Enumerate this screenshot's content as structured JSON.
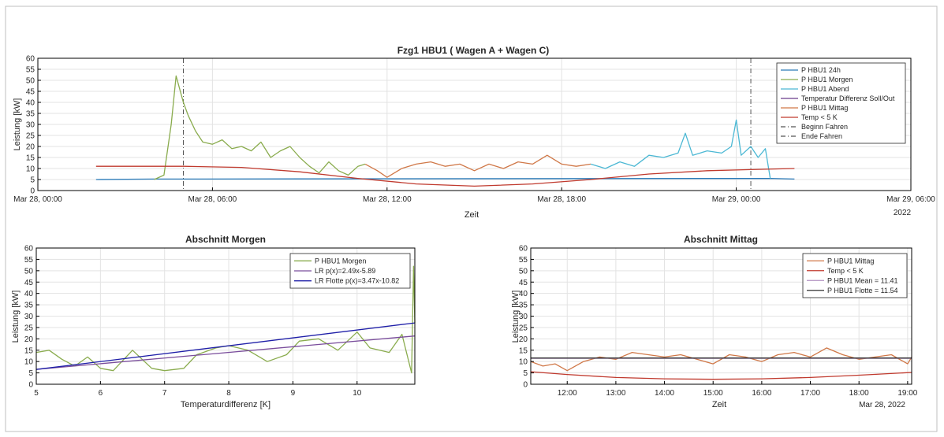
{
  "chart_data": [
    {
      "id": "top",
      "type": "line",
      "title": "Fzg1 HBU1 ( Wagen A + Wagen C)",
      "xlabel": "Zeit",
      "ylabel": "Leistung [kW]",
      "ylim": [
        0,
        60
      ],
      "xlim": [
        "Mar 28, 00:00",
        "Mar 29, 06:00"
      ],
      "grid": true,
      "legend_position": "top-right",
      "year_label": "2022",
      "x_tick_labels": [
        "Mar 28, 00:00",
        "Mar 28, 06:00",
        "Mar 28, 12:00",
        "Mar 28, 18:00",
        "Mar 29, 00:00",
        "Mar 29, 06:00"
      ],
      "y_tick_labels": [
        "0",
        "5",
        "10",
        "15",
        "20",
        "25",
        "30",
        "35",
        "40",
        "45",
        "50",
        "55",
        "60"
      ],
      "legend": [
        {
          "label": "P HBU1 24h",
          "color": "#2a7ab8",
          "dash": ""
        },
        {
          "label": "P HBU1 Morgen",
          "color": "#8aac4e",
          "dash": ""
        },
        {
          "label": "P HBU1 Abend",
          "color": "#4cb8d4",
          "dash": ""
        },
        {
          "label": "Temperatur Differenz Soll/Out",
          "color": "#6a3c8c",
          "dash": ""
        },
        {
          "label": "P HBU1 Mittag",
          "color": "#d07848",
          "dash": ""
        },
        {
          "label": "Temp < 5 K",
          "color": "#c03a2e",
          "dash": ""
        },
        {
          "label": "Beginn Fahren",
          "color": "#555555",
          "dash": "6,3,1,3"
        },
        {
          "label": "Ende Fahren",
          "color": "#555555",
          "dash": "6,3,1,3"
        }
      ],
      "series": [
        {
          "name": "P HBU1 24h",
          "color": "#2a7ab8",
          "points": [
            [
              "Mar 28, 02:00",
              5
            ],
            [
              "Mar 28, 04:00",
              5.2
            ],
            [
              "Mar 29, 01:10",
              5.5
            ],
            [
              "Mar 29, 02:00",
              5.2
            ]
          ]
        },
        {
          "name": "P HBU1 Morgen",
          "color": "#8aac4e",
          "points": [
            [
              "Mar 28, 04:00",
              5
            ],
            [
              "Mar 28, 04:20",
              7
            ],
            [
              "Mar 28, 04:35",
              30
            ],
            [
              "Mar 28, 04:45",
              52
            ],
            [
              "Mar 28, 05:00",
              40
            ],
            [
              "Mar 28, 05:10",
              34
            ],
            [
              "Mar 28, 05:25",
              27
            ],
            [
              "Mar 28, 05:40",
              22
            ],
            [
              "Mar 28, 06:00",
              21
            ],
            [
              "Mar 28, 06:20",
              23
            ],
            [
              "Mar 28, 06:40",
              19
            ],
            [
              "Mar 28, 07:00",
              20
            ],
            [
              "Mar 28, 07:20",
              18
            ],
            [
              "Mar 28, 07:40",
              22
            ],
            [
              "Mar 28, 08:00",
              15
            ],
            [
              "Mar 28, 08:20",
              18
            ],
            [
              "Mar 28, 08:40",
              20
            ],
            [
              "Mar 28, 09:00",
              15
            ],
            [
              "Mar 28, 09:20",
              11
            ],
            [
              "Mar 28, 09:40",
              8
            ],
            [
              "Mar 28, 10:00",
              13
            ],
            [
              "Mar 28, 10:20",
              9
            ],
            [
              "Mar 28, 10:40",
              7
            ],
            [
              "Mar 28, 11:00",
              11
            ],
            [
              "Mar 28, 11:15",
              12
            ]
          ]
        },
        {
          "name": "P HBU1 Mittag",
          "color": "#d07848",
          "points": [
            [
              "Mar 28, 11:15",
              12
            ],
            [
              "Mar 28, 11:40",
              9
            ],
            [
              "Mar 28, 12:00",
              6
            ],
            [
              "Mar 28, 12:30",
              10
            ],
            [
              "Mar 28, 13:00",
              12
            ],
            [
              "Mar 28, 13:30",
              13
            ],
            [
              "Mar 28, 14:00",
              11
            ],
            [
              "Mar 28, 14:30",
              12
            ],
            [
              "Mar 28, 15:00",
              9
            ],
            [
              "Mar 28, 15:30",
              12
            ],
            [
              "Mar 28, 16:00",
              10
            ],
            [
              "Mar 28, 16:30",
              13
            ],
            [
              "Mar 28, 17:00",
              12
            ],
            [
              "Mar 28, 17:30",
              16
            ],
            [
              "Mar 28, 18:00",
              12
            ],
            [
              "Mar 28, 18:30",
              11
            ],
            [
              "Mar 28, 19:00",
              12
            ]
          ]
        },
        {
          "name": "P HBU1 Abend",
          "color": "#4cb8d4",
          "points": [
            [
              "Mar 28, 19:00",
              12
            ],
            [
              "Mar 28, 19:30",
              10
            ],
            [
              "Mar 28, 20:00",
              13
            ],
            [
              "Mar 28, 20:30",
              11
            ],
            [
              "Mar 28, 21:00",
              16
            ],
            [
              "Mar 28, 21:30",
              15
            ],
            [
              "Mar 28, 22:00",
              17
            ],
            [
              "Mar 28, 22:15",
              26
            ],
            [
              "Mar 28, 22:30",
              16
            ],
            [
              "Mar 28, 23:00",
              18
            ],
            [
              "Mar 28, 23:30",
              17
            ],
            [
              "Mar 28, 23:50",
              20
            ],
            [
              "Mar 29, 00:00",
              32
            ],
            [
              "Mar 29, 00:10",
              16
            ],
            [
              "Mar 29, 00:30",
              20
            ],
            [
              "Mar 29, 00:45",
              15
            ],
            [
              "Mar 29, 01:00",
              19
            ],
            [
              "Mar 29, 01:10",
              5.5
            ]
          ]
        },
        {
          "name": "Temp < 5 K",
          "color": "#c03a2e",
          "points": [
            [
              "Mar 28, 02:00",
              11
            ],
            [
              "Mar 28, 05:00",
              11
            ],
            [
              "Mar 28, 07:00",
              10.5
            ],
            [
              "Mar 28, 09:00",
              8.5
            ],
            [
              "Mar 28, 11:00",
              5.5
            ],
            [
              "Mar 28, 13:00",
              3
            ],
            [
              "Mar 28, 15:00",
              2
            ],
            [
              "Mar 28, 17:00",
              3
            ],
            [
              "Mar 28, 19:00",
              5
            ],
            [
              "Mar 28, 21:00",
              7.5
            ],
            [
              "Mar 28, 23:00",
              9
            ],
            [
              "Mar 29, 00:30",
              9.5
            ],
            [
              "Mar 29, 02:00",
              10
            ]
          ]
        }
      ],
      "vlines": [
        {
          "label": "Beginn Fahren",
          "x": "Mar 28, 05:00"
        },
        {
          "label": "Ende Fahren",
          "x": "Mar 29, 00:30"
        }
      ]
    },
    {
      "id": "left",
      "type": "line",
      "title": "Abschnitt Morgen",
      "xlabel": "Temperaturdifferenz [K]",
      "ylabel": "Leistung [kW]",
      "xlim": [
        5,
        10.9
      ],
      "ylim": [
        0,
        60
      ],
      "grid": true,
      "legend_position": "top-right",
      "x_tick_labels": [
        "5",
        "6",
        "7",
        "8",
        "9",
        "10"
      ],
      "y_tick_labels": [
        "0",
        "5",
        "10",
        "15",
        "20",
        "25",
        "30",
        "35",
        "40",
        "45",
        "50",
        "55",
        "60"
      ],
      "legend": [
        {
          "label": "P HBU1 Morgen",
          "color": "#8aac4e",
          "dash": ""
        },
        {
          "label": "LR p(x)=2.49x-5.89",
          "color": "#7a4d9c",
          "dash": ""
        },
        {
          "label": "LR Flotte p(x)=3.47x-10.82",
          "color": "#1f1fa8",
          "dash": ""
        }
      ],
      "series": [
        {
          "name": "P HBU1 Morgen",
          "color": "#8aac4e",
          "x": [
            5,
            5.2,
            5.4,
            5.6,
            5.8,
            6,
            6.2,
            6.5,
            6.8,
            7,
            7.3,
            7.5,
            7.8,
            8,
            8.3,
            8.6,
            8.9,
            9.1,
            9.4,
            9.7,
            10,
            10.2,
            10.5,
            10.7,
            10.85,
            10.88,
            10.9
          ],
          "y": [
            14,
            15,
            11,
            8,
            12,
            7,
            6,
            15,
            7,
            6,
            7,
            13,
            16,
            17,
            15,
            10,
            13,
            19,
            20,
            15,
            23,
            16,
            14,
            22,
            5,
            52,
            27
          ]
        },
        {
          "name": "LR p(x)=2.49x-5.89",
          "color": "#7a4d9c",
          "x": [
            5,
            10.9
          ],
          "y": [
            6.56,
            21.25
          ]
        },
        {
          "name": "LR Flotte p(x)=3.47x-10.82",
          "color": "#1f1fa8",
          "x": [
            5,
            10.9
          ],
          "y": [
            6.53,
            27.0
          ]
        }
      ]
    },
    {
      "id": "right",
      "type": "line",
      "title": "Abschnitt Mittag",
      "xlabel": "Zeit",
      "ylabel": "Leistung [kW]",
      "xlim": [
        "11:15",
        "19:05"
      ],
      "ylim": [
        0,
        60
      ],
      "grid": true,
      "legend_position": "top-right",
      "date_label": "Mar 28, 2022",
      "x_tick_labels": [
        "12:00",
        "13:00",
        "14:00",
        "15:00",
        "16:00",
        "17:00",
        "18:00",
        "19:00"
      ],
      "y_tick_labels": [
        "0",
        "5",
        "10",
        "15",
        "20",
        "25",
        "30",
        "35",
        "40",
        "45",
        "50",
        "55",
        "60"
      ],
      "legend": [
        {
          "label": "P HBU1 Mittag",
          "color": "#d07848",
          "dash": ""
        },
        {
          "label": "Temp < 5 K",
          "color": "#c03a2e",
          "dash": ""
        },
        {
          "label": "P HBU1 Mean = 11.41",
          "color": "#b08fc0",
          "dash": ""
        },
        {
          "label": "P HBU1 Flotte = 11.54",
          "color": "#333333",
          "dash": ""
        }
      ],
      "series": [
        {
          "name": "P HBU1 Mittag",
          "color": "#d07848",
          "points": [
            [
              "11:15",
              10
            ],
            [
              "11:30",
              8
            ],
            [
              "11:45",
              9
            ],
            [
              "12:00",
              6
            ],
            [
              "12:20",
              10
            ],
            [
              "12:40",
              12
            ],
            [
              "13:00",
              11
            ],
            [
              "13:20",
              14
            ],
            [
              "13:40",
              13
            ],
            [
              "14:00",
              12
            ],
            [
              "14:20",
              13
            ],
            [
              "14:40",
              11
            ],
            [
              "15:00",
              9
            ],
            [
              "15:20",
              13
            ],
            [
              "15:40",
              12
            ],
            [
              "16:00",
              10
            ],
            [
              "16:20",
              13
            ],
            [
              "16:40",
              14
            ],
            [
              "17:00",
              12
            ],
            [
              "17:20",
              16
            ],
            [
              "17:40",
              13
            ],
            [
              "18:00",
              11
            ],
            [
              "18:20",
              12
            ],
            [
              "18:40",
              13
            ],
            [
              "19:00",
              9
            ],
            [
              "19:05",
              12
            ]
          ]
        },
        {
          "name": "Temp < 5 K",
          "color": "#c03a2e",
          "points": [
            [
              "11:15",
              5.5
            ],
            [
              "12:00",
              4.3
            ],
            [
              "13:00",
              3
            ],
            [
              "14:00",
              2.4
            ],
            [
              "15:00",
              2.2
            ],
            [
              "16:00",
              2.4
            ],
            [
              "17:00",
              3
            ],
            [
              "18:00",
              4
            ],
            [
              "19:05",
              5.2
            ]
          ]
        },
        {
          "name": "P HBU1 Mean = 11.41",
          "color": "#b08fc0",
          "points": [
            [
              "11:15",
              11.41
            ],
            [
              "19:05",
              11.41
            ]
          ]
        },
        {
          "name": "P HBU1 Flotte = 11.54",
          "color": "#333333",
          "points": [
            [
              "11:15",
              11.54
            ],
            [
              "19:05",
              11.54
            ]
          ]
        }
      ]
    }
  ]
}
